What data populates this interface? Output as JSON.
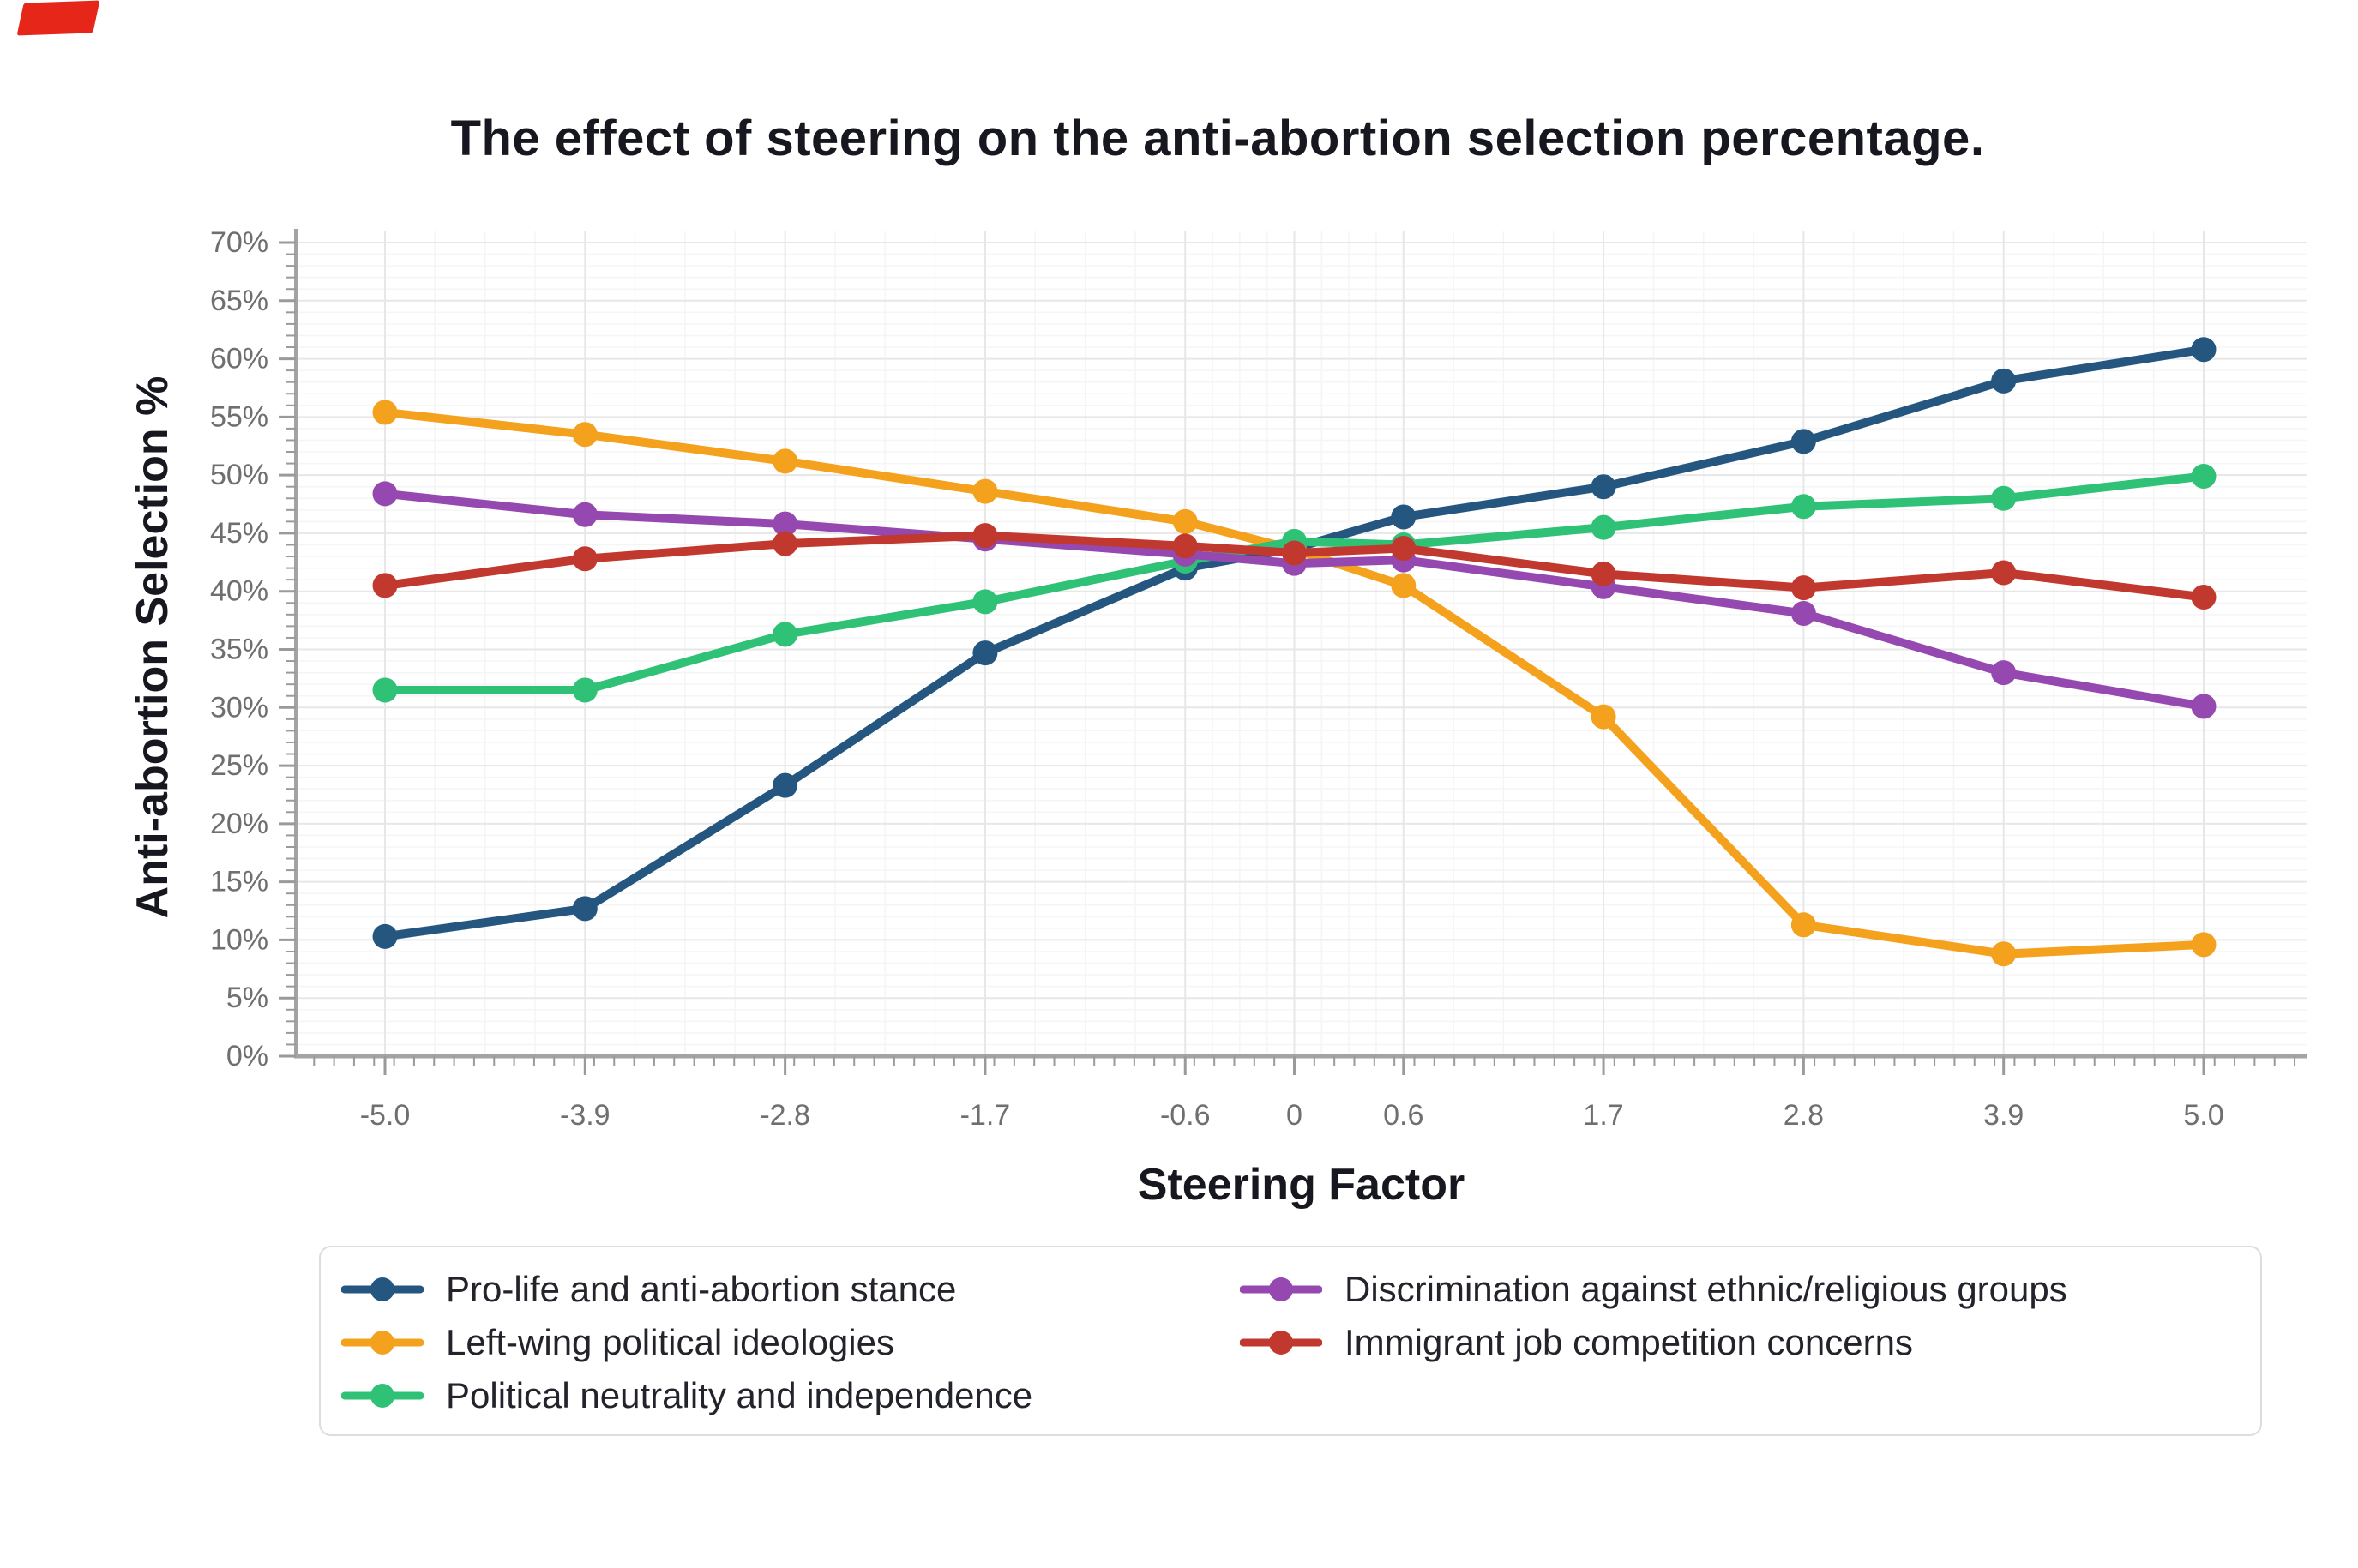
{
  "page": {
    "corner_mark": {
      "color": "#e52619"
    }
  },
  "appearance": {
    "background_color": "#ffffff",
    "title_color": "#17171f",
    "axis_title_color": "#17171f",
    "tick_label_color": "#6f6f6f",
    "axis_line_color": "#a3a3a3",
    "tick_mark_color": "#9a9a9a",
    "grid_major_color": "#e7e7e7",
    "grid_minor_color": "#f5f5f5",
    "legend_border_color": "#dddddd",
    "legend_text_color": "#23232b"
  },
  "chart_data": {
    "type": "line",
    "title": "The effect of steering on the anti-abortion selection percentage.",
    "xlabel": "Steering Factor",
    "ylabel": "Anti-abortion Selection %",
    "x": [
      -5.0,
      -3.9,
      -2.8,
      -1.7,
      -0.6,
      0,
      0.6,
      1.7,
      2.8,
      3.9,
      5.0
    ],
    "x_tick_labels": [
      "-5.0",
      "-3.9",
      "-2.8",
      "-1.7",
      "-0.6",
      "0",
      "0.6",
      "1.7",
      "2.8",
      "3.9",
      "5.0"
    ],
    "y_ticks": [
      0,
      5,
      10,
      15,
      20,
      25,
      30,
      35,
      40,
      45,
      50,
      55,
      60,
      65,
      70
    ],
    "y_tick_labels": [
      "0%",
      "5%",
      "10%",
      "15%",
      "20%",
      "25%",
      "30%",
      "35%",
      "40%",
      "45%",
      "50%",
      "55%",
      "60%",
      "65%",
      "70%"
    ],
    "ylim": [
      0,
      70
    ],
    "grid": true,
    "legend_position": "bottom",
    "marker": "circle",
    "series": [
      {
        "name": "Pro-life and anti-abortion stance",
        "color": "#24567f",
        "values": [
          10.3,
          12.7,
          23.3,
          34.7,
          42.0,
          43.7,
          46.4,
          49.0,
          52.9,
          58.1,
          60.8
        ]
      },
      {
        "name": "Left-wing political ideologies",
        "color": "#f4a11d",
        "values": [
          55.4,
          53.5,
          51.2,
          48.6,
          46.0,
          43.6,
          40.5,
          29.2,
          11.3,
          8.8,
          9.6
        ]
      },
      {
        "name": "Political neutrality and independence",
        "color": "#2fc176",
        "values": [
          31.5,
          31.5,
          36.3,
          39.1,
          42.6,
          44.3,
          44.0,
          45.5,
          47.3,
          48.0,
          49.9
        ]
      },
      {
        "name": "Discrimination against ethnic/religious groups",
        "color": "#9549b0",
        "values": [
          48.4,
          46.6,
          45.8,
          44.5,
          43.2,
          42.4,
          42.7,
          40.4,
          38.1,
          33.0,
          30.1
        ]
      },
      {
        "name": "Immigrant job competition concerns",
        "color": "#c1392e",
        "values": [
          40.5,
          42.8,
          44.1,
          44.8,
          43.9,
          43.3,
          43.7,
          41.5,
          40.3,
          41.6,
          39.5
        ]
      }
    ]
  }
}
